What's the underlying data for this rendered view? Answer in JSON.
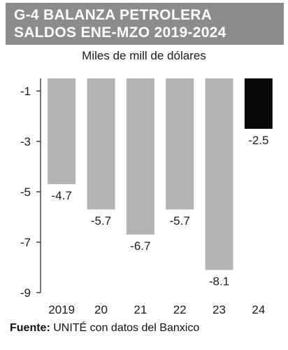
{
  "header": {
    "title_line1": "G-4 BALANZA PETROLERA",
    "title_line2": "SALDOS ENE-MZO 2019-2024",
    "subtitle": "Miles de mill de dólares"
  },
  "source": {
    "label": "Fuente:",
    "text": " UNITÉ con datos del Banxico"
  },
  "colors": {
    "title_bg": "#8c8c8c",
    "bar_default": "#b3b3b3",
    "bar_highlight": "#0a0a0a",
    "axis": "#1a1a1a"
  },
  "chart_data": {
    "type": "bar",
    "title": "G-4 BALANZA PETROLERA SALDOS ENE-MZO 2019-2024",
    "ylabel": "Miles de mill de dólares",
    "categories": [
      "2019",
      "20",
      "21",
      "22",
      "23",
      "24"
    ],
    "values": [
      -4.7,
      -5.7,
      -6.7,
      -5.7,
      -8.1,
      -2.5
    ],
    "value_labels": [
      "-4.7",
      "-5.7",
      "-6.7",
      "-5.7",
      "-8.1",
      "-2.5"
    ],
    "highlight_index": 5,
    "ylim": [
      -9,
      -0.5
    ],
    "yticks": [
      -1,
      -3,
      -5,
      -7,
      -9
    ],
    "ytick_labels": [
      "-1",
      "-3",
      "-5",
      "-7",
      "-9"
    ],
    "grid": false,
    "legend": "none"
  }
}
